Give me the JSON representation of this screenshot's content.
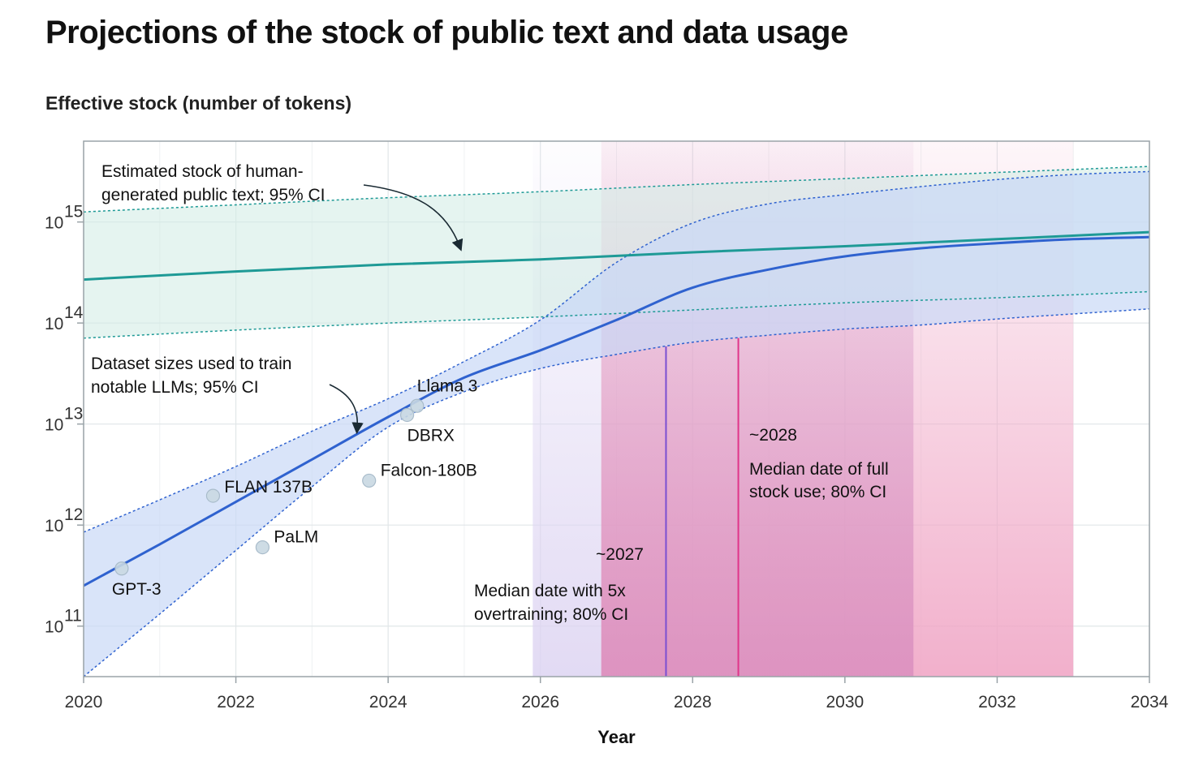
{
  "title": "Projections of the stock of public text and data usage",
  "chart_data": {
    "type": "line",
    "ylabel": "Effective stock (number of tokens)",
    "xlabel": "Year",
    "xlim": [
      2020,
      2034
    ],
    "ylim_log10": [
      10.5,
      15.8
    ],
    "y_scale": "log",
    "grid": true,
    "x_ticks": [
      {
        "value": 2020,
        "label": "2020"
      },
      {
        "value": 2022,
        "label": "2022"
      },
      {
        "value": 2024,
        "label": "2024"
      },
      {
        "value": 2026,
        "label": "2026"
      },
      {
        "value": 2028,
        "label": "2028"
      },
      {
        "value": 2030,
        "label": "2030"
      },
      {
        "value": 2032,
        "label": "2032"
      },
      {
        "value": 2034,
        "label": "2034"
      }
    ],
    "y_ticks": [
      {
        "exp": 11,
        "base": "10",
        "sup": "11"
      },
      {
        "exp": 12,
        "base": "10",
        "sup": "12"
      },
      {
        "exp": 13,
        "base": "10",
        "sup": "13"
      },
      {
        "exp": 14,
        "base": "10",
        "sup": "14"
      },
      {
        "exp": 15,
        "base": "10",
        "sup": "15"
      }
    ],
    "colors": {
      "stock": "#1e9a96",
      "stock_band": "#d4ece6",
      "usage": "#2f62cf",
      "usage_band": "#c9d9f7",
      "full_stock_marker": "#e0358a",
      "overtraining_marker": "#7a4fd1",
      "pink_band": "#f0a7c6",
      "lavender_band": "#ddd4f2"
    },
    "series": [
      {
        "key": "stock",
        "name": "Estimated stock of human-generated public text; 95% CI",
        "x": [
          2020,
          2022,
          2024,
          2026,
          2028,
          2030,
          2032,
          2034
        ],
        "median_log10": [
          14.43,
          14.51,
          14.58,
          14.63,
          14.7,
          14.76,
          14.83,
          14.9
        ],
        "lower_log10": [
          13.85,
          13.93,
          14.0,
          14.06,
          14.13,
          14.2,
          14.25,
          14.31
        ],
        "upper_log10": [
          15.1,
          15.17,
          15.24,
          15.3,
          15.37,
          15.43,
          15.49,
          15.55
        ]
      },
      {
        "key": "usage",
        "name": "Dataset sizes used to train notable LLMs; 95% CI",
        "x": [
          2020,
          2021,
          2022,
          2023,
          2024,
          2025,
          2026,
          2027,
          2028,
          2029,
          2030,
          2031,
          2032,
          2033,
          2034
        ],
        "median_log10": [
          11.4,
          11.81,
          12.23,
          12.65,
          13.07,
          13.46,
          13.73,
          14.03,
          14.35,
          14.53,
          14.66,
          14.74,
          14.79,
          14.83,
          14.85
        ],
        "lower_log10": [
          10.5,
          11.12,
          11.75,
          12.38,
          12.97,
          13.32,
          13.55,
          13.69,
          13.81,
          13.88,
          13.94,
          13.98,
          14.04,
          14.09,
          14.14
        ],
        "upper_log10": [
          11.93,
          12.25,
          12.58,
          12.93,
          13.25,
          13.62,
          14.03,
          14.6,
          14.99,
          15.18,
          15.27,
          15.35,
          15.42,
          15.47,
          15.5
        ]
      }
    ],
    "models": [
      {
        "name": "GPT-3",
        "x": 2020.5,
        "log10": 11.57
      },
      {
        "name": "FLAN 137B",
        "x": 2021.7,
        "log10": 12.29
      },
      {
        "name": "PaLM",
        "x": 2022.35,
        "log10": 11.78
      },
      {
        "name": "Falcon-180B",
        "x": 2023.75,
        "log10": 12.44
      },
      {
        "name": "DBRX",
        "x": 2024.25,
        "log10": 13.09
      },
      {
        "name": "Llama 3",
        "x": 2024.38,
        "log10": 13.18
      }
    ],
    "projections": [
      {
        "key": "overtraining",
        "marker_label": "~2027",
        "note": [
          "Median date with 5x",
          "overtraining; 80% CI"
        ],
        "median_x": 2027.65,
        "ci": [
          2025.9,
          2030.9
        ]
      },
      {
        "key": "full_stock",
        "marker_label": "~2028",
        "note": [
          "Median date of full",
          "stock use; 80% CI"
        ],
        "median_x": 2028.6,
        "ci": [
          2026.8,
          2033.0
        ]
      }
    ],
    "annotations": {
      "stock_note": [
        "Estimated stock of human-",
        "generated public text; 95% CI"
      ],
      "usage_note": [
        "Dataset sizes used to train",
        "notable LLMs; 95% CI"
      ]
    }
  }
}
